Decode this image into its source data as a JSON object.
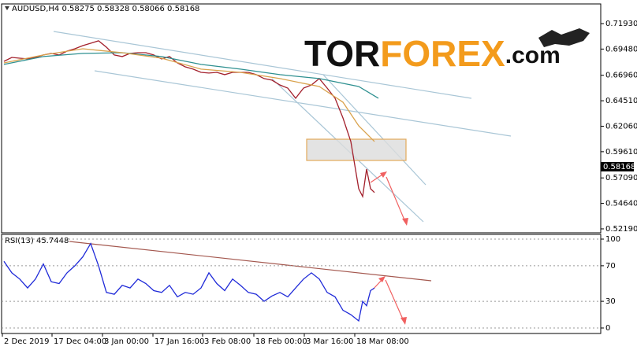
{
  "chart_data": [
    {
      "type": "line",
      "title": "AUDUSD,H4  0.58275 0.58328 0.58066 0.58168",
      "watermark": [
        "TOR",
        "FOREX",
        ".com"
      ],
      "ylim": [
        0.5181,
        0.7382
      ],
      "yticks": [
        {
          "value": 0.7193,
          "label": "0.71930"
        },
        {
          "value": 0.6948,
          "label": "0.69480"
        },
        {
          "value": 0.6696,
          "label": "0.66960"
        },
        {
          "value": 0.6451,
          "label": "0.64510"
        },
        {
          "value": 0.6206,
          "label": "0.62060"
        },
        {
          "value": 0.5961,
          "label": "0.59610"
        },
        {
          "value": 0.5709,
          "label": "0.57090"
        },
        {
          "value": 0.5464,
          "label": "0.54640"
        },
        {
          "value": 0.5219,
          "label": "0.52190"
        }
      ],
      "last_price": 0.58168,
      "xlim": [
        0,
        76
      ],
      "grid": false,
      "series": [
        {
          "color": "#a3202c",
          "x": [
            0.3,
            1.3,
            2.3,
            3.3,
            4.3,
            5.3,
            6.3,
            7.3,
            8.3,
            9.3,
            10.3,
            11.3,
            12.3,
            13.3,
            14.3,
            15.3,
            16.3,
            17.3,
            18.3,
            19.3,
            20.3,
            21.3,
            22.3,
            23.3,
            24.3,
            25.3,
            26.3,
            27.3,
            28.3,
            29.3,
            30.3,
            31.3,
            32.3,
            33.3,
            34.3,
            35.3,
            36.3,
            37.3,
            38.3,
            39.3,
            40.3,
            41.3,
            42.3,
            43.3,
            44.3,
            45.3,
            45.8,
            46.3,
            46.8,
            47.3
          ],
          "values": [
            0.683,
            0.6868,
            0.686,
            0.6853,
            0.6868,
            0.6891,
            0.6906,
            0.6891,
            0.6928,
            0.6951,
            0.6981,
            0.7004,
            0.7027,
            0.6966,
            0.6891,
            0.6876,
            0.6906,
            0.6913,
            0.6913,
            0.6891,
            0.6853,
            0.6876,
            0.6815,
            0.6777,
            0.6755,
            0.6724,
            0.6717,
            0.6724,
            0.6702,
            0.6724,
            0.6724,
            0.6724,
            0.6702,
            0.6664,
            0.6649,
            0.6603,
            0.6573,
            0.6475,
            0.6573,
            0.6603,
            0.6664,
            0.6573,
            0.6475,
            0.6286,
            0.6059,
            0.5605,
            0.553,
            0.5794,
            0.5605,
            0.5568
          ]
        },
        {
          "color": "#2e9090",
          "x": [
            0.3,
            5.3,
            10.3,
            15.3,
            20.3,
            25.3,
            30.3,
            35.3,
            40.3,
            45.3,
            47.8
          ],
          "values": [
            0.68,
            0.6876,
            0.6906,
            0.6913,
            0.6876,
            0.68,
            0.6755,
            0.6702,
            0.6664,
            0.6588,
            0.6475
          ]
        },
        {
          "color": "#d9a24c",
          "x": [
            0.3,
            5.3,
            10.3,
            15.3,
            20.3,
            25.3,
            30.3,
            35.3,
            40.3,
            43.3,
            45.3,
            47.3
          ],
          "values": [
            0.6815,
            0.6891,
            0.6951,
            0.6913,
            0.686,
            0.6755,
            0.6724,
            0.6664,
            0.6588,
            0.6437,
            0.621,
            0.6059
          ]
        }
      ]
    },
    {
      "type": "line",
      "title": "RSI(13) 45.7448",
      "ylim": [
        -6.2,
        105.3
      ],
      "yticks": [
        100,
        70,
        30,
        0
      ],
      "grid": true,
      "xlim": [
        0,
        76
      ],
      "xticks": [
        {
          "value": 0.1,
          "label": "2 Dec 2019"
        },
        {
          "value": 6.4,
          "label": "17 Dec 04:00"
        },
        {
          "value": 12.8,
          "label": "3 Jan 00:00"
        },
        {
          "value": 19.2,
          "label": "17 Jan 16:00"
        },
        {
          "value": 25.5,
          "label": "3 Feb 08:00"
        },
        {
          "value": 32,
          "label": "18 Feb 00:00"
        },
        {
          "value": 38.4,
          "label": "3 Mar 16:00"
        },
        {
          "value": 44.8,
          "label": "18 Mar 08:00"
        }
      ],
      "series": [
        {
          "color": "#1f2ad8",
          "x": [
            0.3,
            1.3,
            2.3,
            3.3,
            4.3,
            5.3,
            6.3,
            7.3,
            8.3,
            9.3,
            10.3,
            11.3,
            12.3,
            13.3,
            14.3,
            15.3,
            16.3,
            17.3,
            18.3,
            19.3,
            20.3,
            21.3,
            22.3,
            23.3,
            24.3,
            25.3,
            26.3,
            27.3,
            28.3,
            29.3,
            30.3,
            31.3,
            32.3,
            33.3,
            34.3,
            35.3,
            36.3,
            37.3,
            38.3,
            39.3,
            40.3,
            41.3,
            42.3,
            43.3,
            44.3,
            45.3,
            45.8,
            46.3,
            46.8,
            47.3
          ],
          "values": [
            75,
            62,
            55,
            45,
            55,
            72,
            52,
            50,
            62,
            70,
            80,
            95,
            70,
            40,
            38,
            48,
            45,
            55,
            50,
            42,
            40,
            48,
            35,
            40,
            38,
            45,
            62,
            50,
            42,
            55,
            48,
            40,
            38,
            30,
            36,
            40,
            35,
            45,
            55,
            62,
            55,
            40,
            35,
            20,
            15,
            8,
            30,
            25,
            42,
            45
          ]
        }
      ]
    }
  ]
}
